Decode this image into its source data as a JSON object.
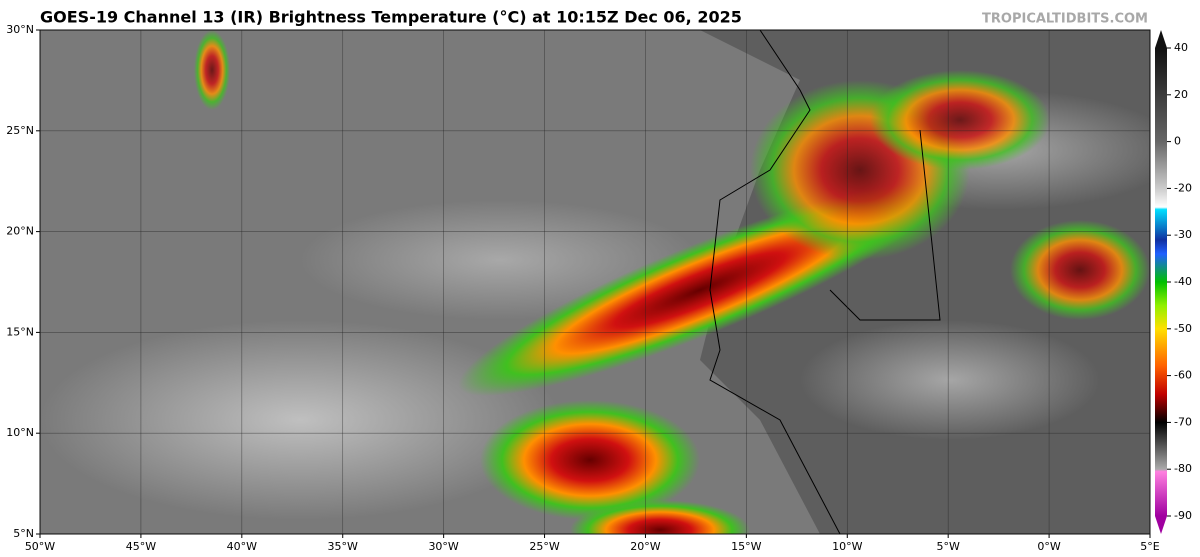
{
  "header": {
    "title": "GOES-19 Channel 13 (IR) Brightness Temperature (°C) at 10:15Z Dec 06, 2025",
    "credit": "TROPICALTIDBITS.COM"
  },
  "map": {
    "xlim": [
      -50,
      5
    ],
    "ylim": [
      5,
      30
    ],
    "xticks": [
      {
        "value": -50,
        "label": "50°W"
      },
      {
        "value": -45,
        "label": "45°W"
      },
      {
        "value": -40,
        "label": "40°W"
      },
      {
        "value": -35,
        "label": "35°W"
      },
      {
        "value": -30,
        "label": "30°W"
      },
      {
        "value": -25,
        "label": "25°W"
      },
      {
        "value": -20,
        "label": "20°W"
      },
      {
        "value": -15,
        "label": "15°W"
      },
      {
        "value": -10,
        "label": "10°W"
      },
      {
        "value": -5,
        "label": "5°W"
      },
      {
        "value": 0,
        "label": "0°W"
      },
      {
        "value": 5,
        "label": "5°E"
      }
    ],
    "yticks": [
      {
        "value": 5,
        "label": "5°N"
      },
      {
        "value": 10,
        "label": "10°N"
      },
      {
        "value": 15,
        "label": "15°N"
      },
      {
        "value": 20,
        "label": "20°N"
      },
      {
        "value": 25,
        "label": "25°N"
      },
      {
        "value": 30,
        "label": "30°N"
      }
    ],
    "grid": true
  },
  "colorbar": {
    "ticks": [
      40,
      20,
      0,
      -20,
      -30,
      -40,
      -50,
      -60,
      -70,
      -80,
      -90
    ]
  }
}
